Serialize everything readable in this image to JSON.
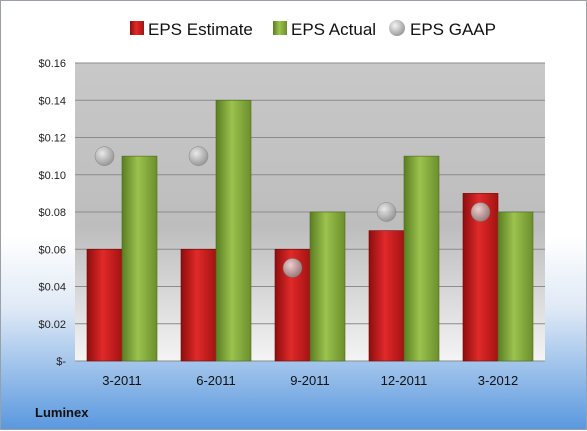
{
  "chart_data": {
    "type": "bar",
    "title": "",
    "xlabel": "",
    "ylabel": "",
    "categories": [
      "3-2011",
      "6-2011",
      "9-2011",
      "12-2011",
      "3-2012"
    ],
    "series": [
      {
        "name": "EPS Estimate",
        "kind": "bar",
        "color": "#cc1f1f",
        "values": [
          0.06,
          0.06,
          0.06,
          0.07,
          0.09
        ]
      },
      {
        "name": "EPS Actual",
        "kind": "bar",
        "color": "#7fa83a",
        "values": [
          0.11,
          0.14,
          0.08,
          0.11,
          0.08
        ]
      },
      {
        "name": "EPS GAAP",
        "kind": "marker",
        "color": "#b8b8b8",
        "values": [
          0.11,
          0.11,
          0.05,
          0.08,
          0.08
        ]
      }
    ],
    "ylim": [
      0,
      0.16
    ],
    "yticks": [
      0,
      0.02,
      0.04,
      0.06,
      0.08,
      0.1,
      0.12,
      0.14,
      0.16
    ],
    "ytick_labels": [
      "$-",
      "$0.02",
      "$0.04",
      "$0.06",
      "$0.08",
      "$0.10",
      "$0.12",
      "$0.14",
      "$0.16"
    ],
    "grid": true,
    "legend_position": "top"
  },
  "company": "Luminex"
}
